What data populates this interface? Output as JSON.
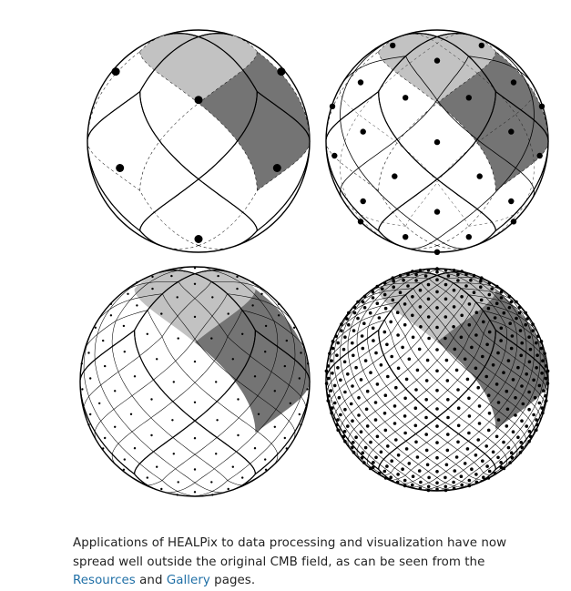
{
  "figure": {
    "spheres": [
      {
        "name": "healpix-sphere-nside-1",
        "nside": 1,
        "pixel_count": 12
      },
      {
        "name": "healpix-sphere-nside-2",
        "nside": 2,
        "pixel_count": 48
      },
      {
        "name": "healpix-sphere-nside-4",
        "nside": 4,
        "pixel_count": 192
      },
      {
        "name": "healpix-sphere-nside-8",
        "nside": 8,
        "pixel_count": 768
      }
    ],
    "colors": {
      "north_face": "#c2c2c2",
      "equatorial_face": "#747474",
      "sphere_fill": "#ffffff",
      "lines": "#000000"
    }
  },
  "caption": {
    "part1": "Applications of HEALPix to data processing and visualization have now spread well outside the original CMB field, as can be seen from the ",
    "link1": "Resources",
    "part2": " and ",
    "link2": "Gallery",
    "part3": " pages."
  }
}
